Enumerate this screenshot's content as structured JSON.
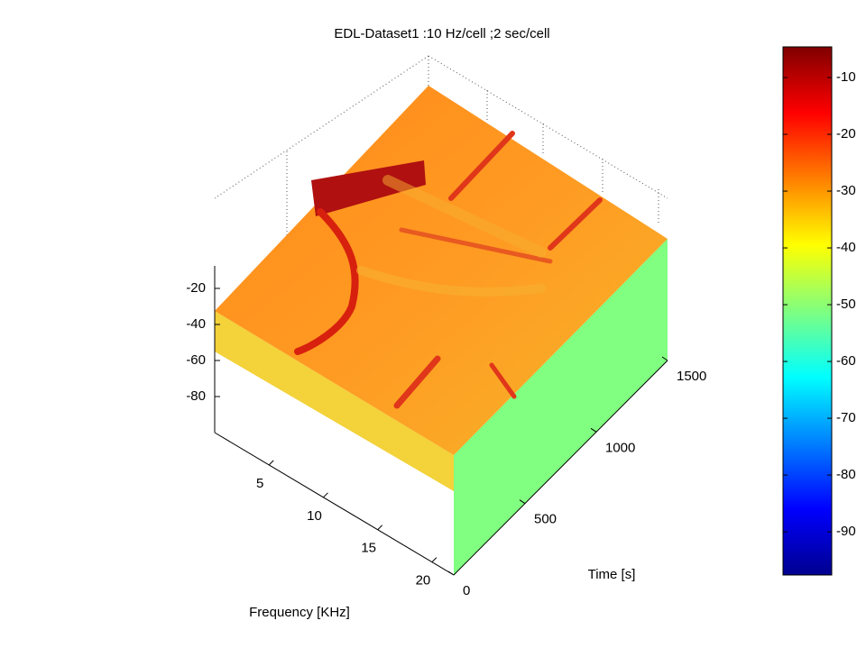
{
  "chart_data": {
    "type": "surface",
    "title": "EDL-Dataset1 :10 Hz/cell  ;2 sec/cell",
    "xlabel": "Frequency [KHz]",
    "ylabel": "Time [s]",
    "xlim": [
      0,
      22
    ],
    "xticks": [
      5,
      10,
      15,
      20
    ],
    "ylim": [
      0,
      1500
    ],
    "yticks": [
      0,
      500,
      1000,
      1500
    ],
    "zlim": [
      -100,
      -10
    ],
    "zticks": [
      -20,
      -40,
      -60,
      -80
    ],
    "clim": [
      -97.6,
      -4.6
    ],
    "cticks": [
      -10,
      -20,
      -30,
      -40,
      -50,
      -60,
      -70,
      -80,
      -90
    ]
  }
}
